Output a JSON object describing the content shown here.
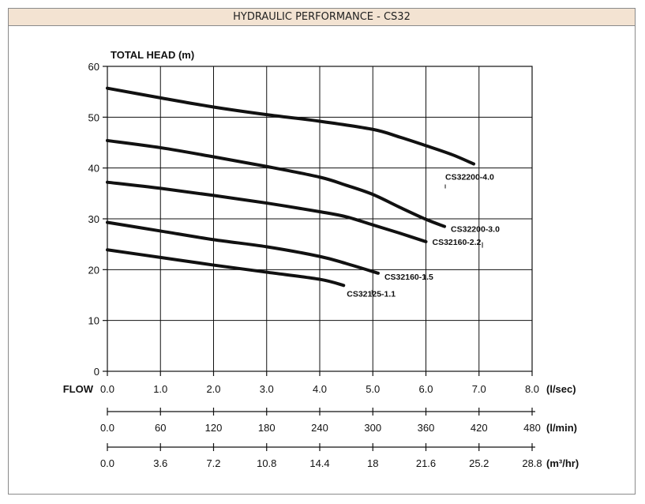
{
  "header": {
    "title": "HYDRAULIC PERFORMANCE - CS32"
  },
  "chart_data": {
    "type": "line",
    "ylabel": "TOTAL HEAD (m)",
    "xlabel": "FLOW",
    "ylim": [
      0,
      60
    ],
    "xlim": [
      0,
      8
    ],
    "grid": true,
    "y_ticks": [
      "0",
      "10",
      "20",
      "30",
      "40",
      "50",
      "60"
    ],
    "x_axes": [
      {
        "unit": "(l/sec)",
        "ticks": [
          "0.0",
          "1.0",
          "2.0",
          "3.0",
          "4.0",
          "5.0",
          "6.0",
          "7.0",
          "8.0"
        ]
      },
      {
        "unit": "(l/min)",
        "ticks": [
          "0.0",
          "60",
          "120",
          "180",
          "240",
          "300",
          "360",
          "420",
          "480"
        ]
      },
      {
        "unit": "(m³/hr)",
        "ticks": [
          "0.0",
          "3.6",
          "7.2",
          "10.8",
          "14.4",
          "18",
          "21.6",
          "25.2",
          "28.8"
        ]
      }
    ],
    "series": [
      {
        "name": "CS32200-4.0",
        "x": [
          0,
          1,
          2,
          3,
          4,
          5,
          5.5,
          6,
          6.5,
          6.9
        ],
        "y": [
          55.7,
          53.8,
          52.0,
          50.5,
          49.2,
          47.6,
          46.1,
          44.4,
          42.6,
          40.8
        ]
      },
      {
        "name": "CS32200-3.0",
        "x": [
          0,
          1,
          2,
          3,
          4,
          4.5,
          5,
          5.5,
          6,
          6.35
        ],
        "y": [
          45.4,
          44.0,
          42.2,
          40.3,
          38.2,
          36.6,
          34.8,
          32.3,
          29.9,
          28.5
        ]
      },
      {
        "name": "CS32160-2.2",
        "x": [
          0,
          1,
          2,
          3,
          4,
          4.5,
          5,
          5.5,
          6.0
        ],
        "y": [
          37.2,
          36.0,
          34.6,
          33.1,
          31.4,
          30.4,
          28.8,
          27.2,
          25.5
        ]
      },
      {
        "name": "CS32160-1.5",
        "x": [
          0,
          1,
          2,
          3,
          4,
          4.5,
          5.1
        ],
        "y": [
          29.3,
          27.6,
          25.9,
          24.5,
          22.6,
          21.2,
          19.3
        ]
      },
      {
        "name": "CS32125-1.1",
        "x": [
          0,
          1,
          2,
          3,
          4,
          4.45
        ],
        "y": [
          23.9,
          22.4,
          20.9,
          19.5,
          18.1,
          16.9
        ]
      }
    ]
  }
}
